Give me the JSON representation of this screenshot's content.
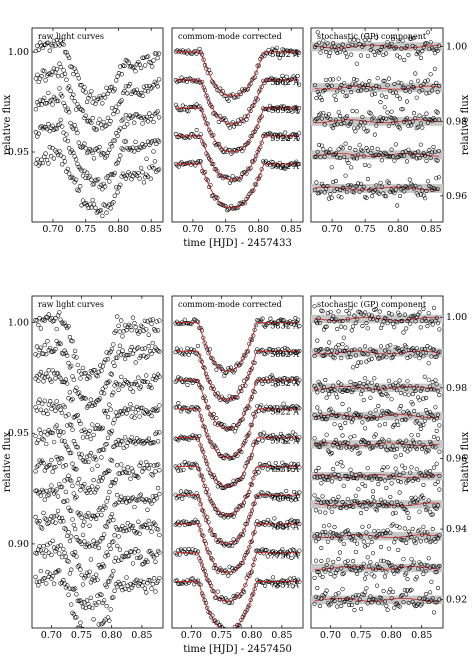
{
  "chart_data": [
    {
      "type": "scatter",
      "panels": [
        "raw light curves",
        "commom-mode corrected",
        "stochastic (GP) component"
      ],
      "xlabel": "time [HJD] - 2457433",
      "ylabel_left": "relative flux",
      "ylabel_right": "relative flux",
      "x_ticks": [
        "0.70",
        "0.75",
        "0.80",
        "0.85"
      ],
      "x_tick_values": [
        0.7,
        0.75,
        0.8,
        0.85
      ],
      "xlim": [
        0.668,
        0.868
      ],
      "left_ylim": [
        0.915,
        1.012
      ],
      "left_y_ticks": [
        "0.95",
        "1.00"
      ],
      "left_y_tick_values": [
        0.95,
        1.0
      ],
      "right_ylim": [
        0.953,
        1.005
      ],
      "right_y_ticks": [
        "0.96",
        "0.98",
        "1.00"
      ],
      "right_y_tick_values": [
        0.96,
        0.98,
        1.0
      ],
      "transit": {
        "ingress": 0.712,
        "egress": 0.808,
        "center": 0.76,
        "depth": 0.022
      },
      "series": [
        {
          "name": "5832 Å",
          "baseline": 1.0,
          "gp_level": 1.0
        },
        {
          "name": "5862 Å",
          "baseline": 0.986,
          "gp_level": 0.989
        },
        {
          "name": "5892 Å",
          "baseline": 0.972,
          "gp_level": 0.98
        },
        {
          "name": "5922 Å",
          "baseline": 0.958,
          "gp_level": 0.971
        },
        {
          "name": "5952 Å",
          "baseline": 0.944,
          "gp_level": 0.962
        }
      ],
      "grid": false,
      "legend": "none"
    },
    {
      "type": "scatter",
      "panels": [
        "raw light curves",
        "commom-mode corrected",
        "stochastic (GP) component"
      ],
      "xlabel": "time [HJD] - 2457450",
      "ylabel_left": "relative flux",
      "ylabel_right": "relative flux",
      "x_ticks": [
        "0.70",
        "0.75",
        "0.80",
        "0.85"
      ],
      "x_tick_values": [
        0.7,
        0.75,
        0.8,
        0.85
      ],
      "xlim": [
        0.668,
        0.885
      ],
      "left_ylim": [
        0.862,
        1.012
      ],
      "left_y_ticks": [
        "0.90",
        "0.95",
        "1.00"
      ],
      "left_y_tick_values": [
        0.9,
        0.95,
        1.0
      ],
      "right_ylim": [
        0.912,
        1.006
      ],
      "right_y_ticks": [
        "0.92",
        "0.94",
        "0.96",
        "0.98",
        "1.00"
      ],
      "right_y_tick_values": [
        0.92,
        0.94,
        0.96,
        0.98,
        1.0
      ],
      "transit": {
        "ingress": 0.712,
        "egress": 0.808,
        "center": 0.76,
        "depth": 0.022
      },
      "series": [
        {
          "name": "5832 Å",
          "baseline": 1.0,
          "gp_level": 0.9995
        },
        {
          "name": "5862 Å",
          "baseline": 0.987,
          "gp_level": 0.99
        },
        {
          "name": "5892 Å",
          "baseline": 0.974,
          "gp_level": 0.98
        },
        {
          "name": "5922 Å",
          "baseline": 0.961,
          "gp_level": 0.972
        },
        {
          "name": "5952 Å",
          "baseline": 0.948,
          "gp_level": 0.964
        },
        {
          "name": "7531 Å",
          "baseline": 0.935,
          "gp_level": 0.955
        },
        {
          "name": "7606 Å",
          "baseline": 0.922,
          "gp_level": 0.947
        },
        {
          "name": "7681 Å",
          "baseline": 0.909,
          "gp_level": 0.938
        },
        {
          "name": "7756 Å",
          "baseline": 0.896,
          "gp_level": 0.929
        },
        {
          "name": "7831 Å",
          "baseline": 0.883,
          "gp_level": 0.92
        }
      ],
      "grid": false,
      "legend": "none"
    }
  ]
}
